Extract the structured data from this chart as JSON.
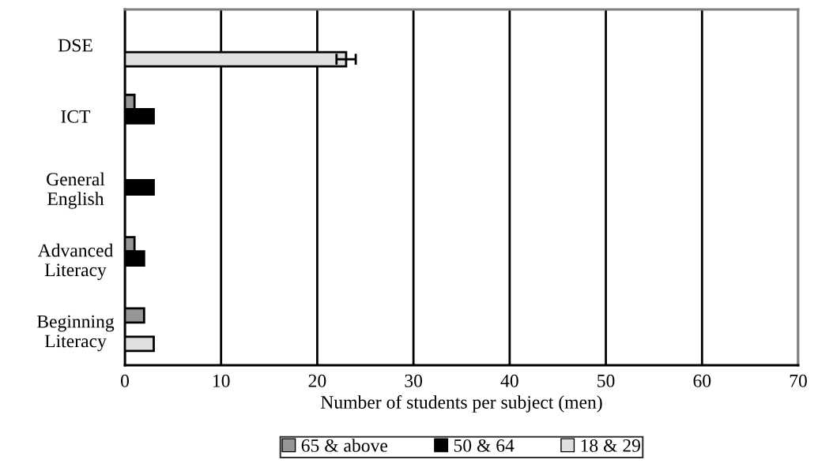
{
  "chart_data": {
    "type": "bar",
    "orientation": "horizontal",
    "xlabel": "Number of students per subject (men)",
    "categories": [
      "DSE",
      "ICT",
      "General\nEnglish",
      "Advanced\nLiteracy",
      "Beginning\nLiteracy"
    ],
    "series": [
      {
        "name": "65 & above",
        "color": "#969696",
        "values": [
          null,
          1,
          null,
          1,
          2
        ]
      },
      {
        "name": "50 & 64",
        "color": "#000000",
        "values": [
          null,
          3,
          3,
          2,
          null
        ]
      },
      {
        "name": "18 & 29",
        "color": "#e0e0e0",
        "values": [
          23,
          null,
          null,
          null,
          3
        ],
        "errors": [
          1,
          null,
          null,
          null,
          null
        ]
      }
    ],
    "xlim": [
      0,
      70
    ],
    "xticks": [
      0,
      10,
      20,
      30,
      40,
      50,
      60,
      70
    ],
    "grid": "x",
    "legend": "bottom"
  }
}
